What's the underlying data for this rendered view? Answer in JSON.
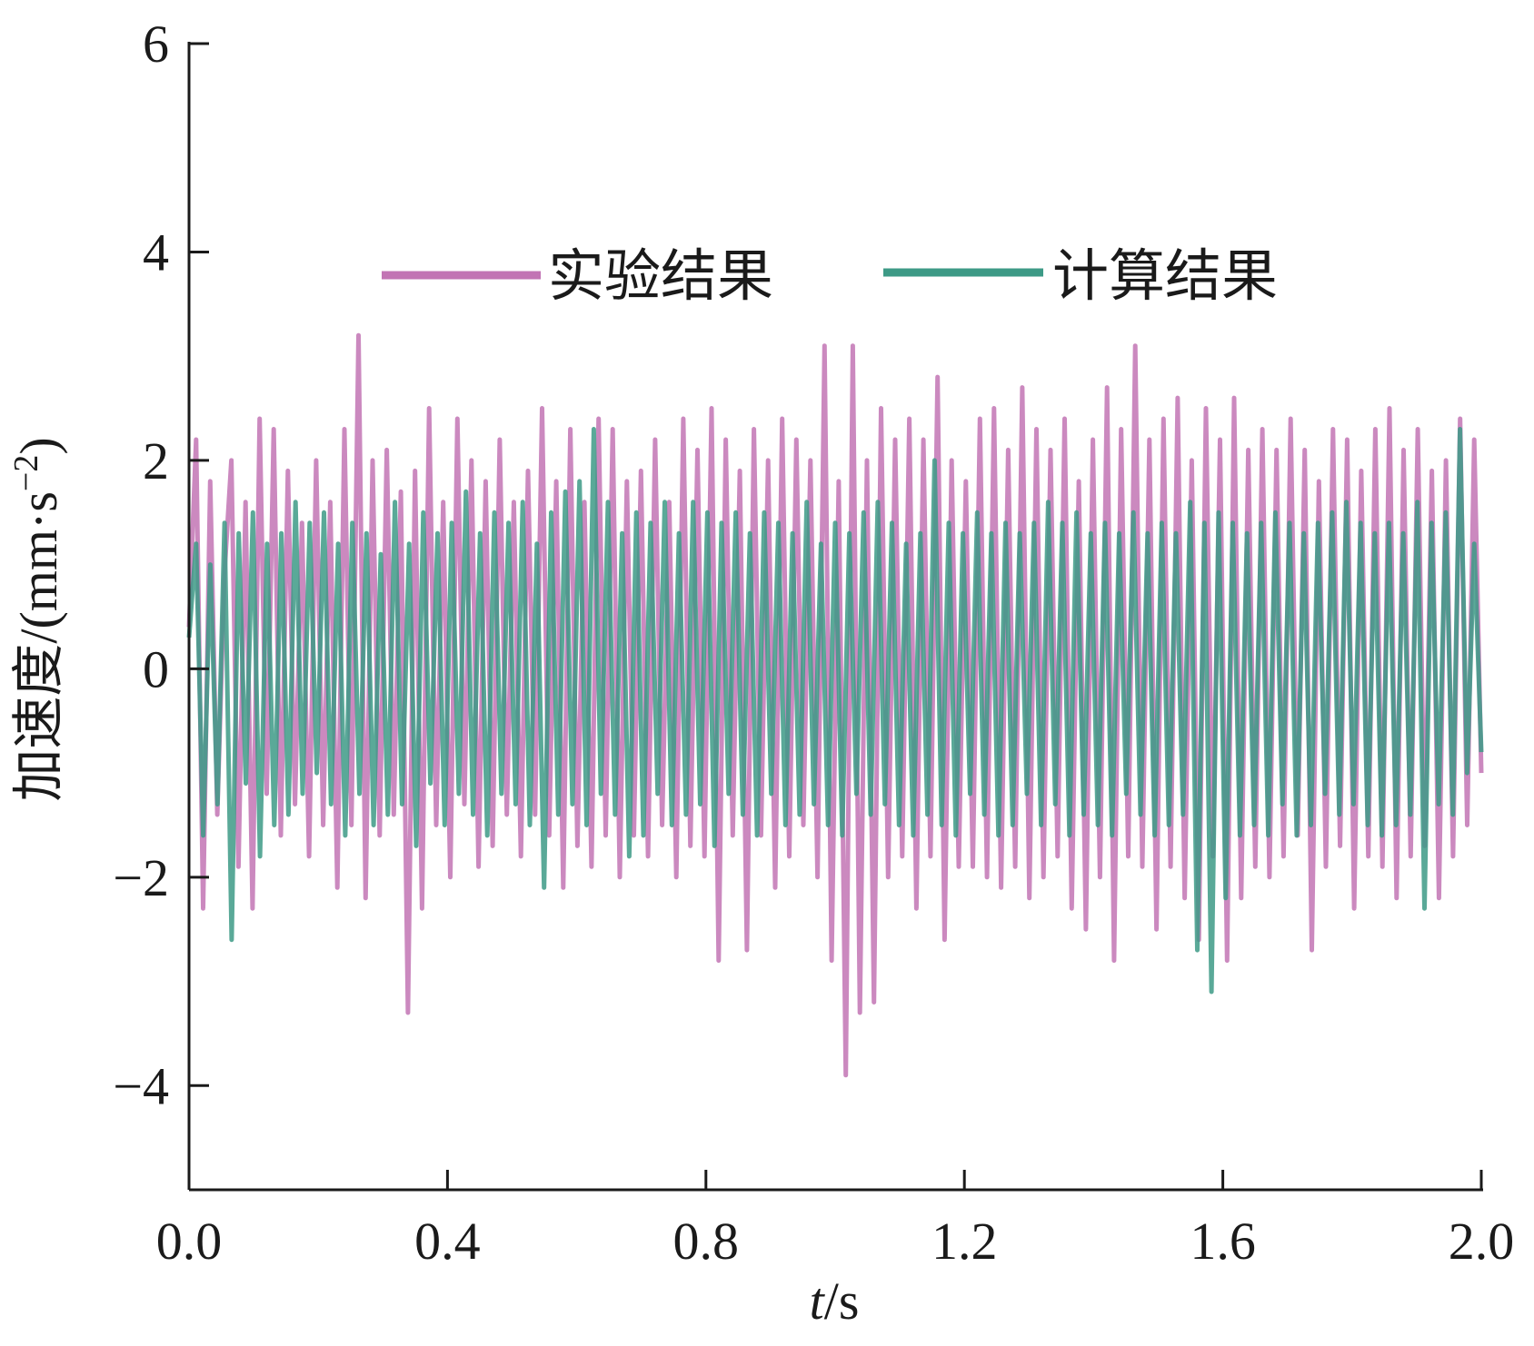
{
  "chart_data": {
    "type": "line",
    "xlabel_italic": "t",
    "xlabel_unit": "/s",
    "ylabel_main": "加速度/(mm·s",
    "ylabel_sup": "−2",
    "ylabel_close": ")",
    "xlim": [
      0.0,
      2.0
    ],
    "ylim": [
      -5,
      6
    ],
    "xticks": [
      0.0,
      0.4,
      0.8,
      1.2,
      1.6,
      2.0
    ],
    "xtick_labels": [
      "0.0",
      "0.4",
      "0.8",
      "1.2",
      "1.6",
      "2.0"
    ],
    "yticks": [
      -4,
      -2,
      0,
      2,
      4,
      6
    ],
    "ytick_labels": [
      "−4",
      "−2",
      "0",
      "2",
      "4",
      "6"
    ],
    "legend_placement": "upper-center",
    "series": [
      {
        "name": "实验结果",
        "color": "#c274b4",
        "opacity": 0.85,
        "x_start": 0.0,
        "x_end": 2.0,
        "values": [
          0.4,
          2.2,
          -2.3,
          1.8,
          -1.4,
          0.9,
          2.0,
          -1.9,
          1.6,
          -2.3,
          2.4,
          -1.2,
          2.3,
          -1.6,
          1.9,
          -1.3,
          1.4,
          -1.8,
          2.0,
          -1.5,
          1.6,
          -2.1,
          2.3,
          -1.5,
          3.2,
          -2.2,
          2.0,
          -1.6,
          2.1,
          -1.4,
          1.7,
          -3.3,
          1.9,
          -2.3,
          2.5,
          -1.5,
          1.6,
          -2.0,
          2.4,
          -1.3,
          2.0,
          -1.9,
          1.8,
          -1.7,
          2.2,
          -1.4,
          1.6,
          -1.8,
          1.9,
          -1.4,
          2.5,
          -1.6,
          1.8,
          -2.1,
          2.3,
          -1.7,
          1.6,
          -1.9,
          2.4,
          -1.6,
          2.3,
          -2.0,
          1.8,
          -1.6,
          1.9,
          -1.8,
          2.2,
          -1.5,
          1.6,
          -2.0,
          2.4,
          -1.7,
          2.1,
          -1.8,
          2.5,
          -2.8,
          2.2,
          -1.6,
          1.9,
          -2.7,
          2.3,
          -1.6,
          2.0,
          -2.1,
          2.4,
          -1.8,
          2.2,
          -1.5,
          2.0,
          -2.0,
          3.1,
          -2.8,
          1.8,
          -3.9,
          3.1,
          -3.3,
          2.0,
          -3.2,
          2.5,
          -2.0,
          2.2,
          -1.8,
          2.4,
          -2.3,
          2.2,
          -1.8,
          2.8,
          -2.6,
          2.0,
          -1.9,
          1.8,
          -1.9,
          2.4,
          -2.0,
          2.5,
          -2.1,
          2.1,
          -1.9,
          2.7,
          -2.2,
          2.3,
          -2.0,
          2.1,
          -1.8,
          2.4,
          -2.3,
          1.8,
          -2.5,
          2.2,
          -2.0,
          2.7,
          -2.8,
          2.3,
          -1.8,
          3.1,
          -1.9,
          2.2,
          -2.5,
          2.4,
          -1.9,
          2.6,
          -2.2,
          2.0,
          -2.6,
          2.5,
          -1.8,
          2.2,
          -2.8,
          2.6,
          -2.2,
          2.1,
          -1.9,
          2.3,
          -2.0,
          2.1,
          -1.8,
          2.4,
          -1.6,
          2.1,
          -2.7,
          1.8,
          -1.9,
          2.3,
          -1.7,
          2.2,
          -2.3,
          1.9,
          -1.8,
          2.3,
          -1.9,
          2.5,
          -2.2,
          2.1,
          -1.8,
          2.3,
          -1.7,
          1.9,
          -2.2,
          2.0,
          -1.8,
          2.4,
          -1.5,
          2.2,
          -1.0
        ],
        "spread_note": "dense oscillation"
      },
      {
        "name": "计算结果",
        "color": "#3d9a86",
        "opacity": 0.85,
        "x_start": 0.0,
        "x_end": 2.0,
        "values": [
          0.3,
          1.2,
          -1.6,
          1.0,
          -1.3,
          1.4,
          -2.6,
          1.3,
          -1.1,
          1.5,
          -1.8,
          1.2,
          -1.5,
          1.3,
          -1.4,
          1.6,
          -1.2,
          1.4,
          -1.0,
          1.5,
          -1.3,
          1.2,
          -1.6,
          1.4,
          -1.2,
          1.3,
          -1.5,
          1.1,
          -1.4,
          1.6,
          -1.3,
          1.2,
          -1.7,
          1.5,
          -1.1,
          1.3,
          -1.5,
          1.4,
          -1.2,
          1.7,
          -1.4,
          1.3,
          -1.6,
          1.5,
          -1.2,
          1.4,
          -1.3,
          1.6,
          -1.5,
          1.2,
          -2.1,
          1.5,
          -1.4,
          1.7,
          -1.3,
          1.8,
          -1.5,
          2.3,
          -1.2,
          1.6,
          -1.4,
          1.3,
          -1.8,
          1.5,
          -1.6,
          1.4,
          -1.2,
          1.6,
          -1.5,
          1.3,
          -1.4,
          1.6,
          -1.3,
          1.5,
          -1.7,
          1.4,
          -1.2,
          1.5,
          -1.4,
          1.3,
          -1.6,
          1.5,
          -1.2,
          1.4,
          -1.5,
          1.3,
          -1.4,
          1.6,
          -1.3,
          1.2,
          -1.5,
          1.4,
          -1.6,
          1.3,
          -1.2,
          1.5,
          -1.4,
          1.6,
          -1.3,
          1.4,
          -1.5,
          1.2,
          -1.6,
          1.3,
          -1.4,
          2.0,
          -1.5,
          1.4,
          -1.6,
          1.3,
          -1.2,
          1.5,
          -1.4,
          1.3,
          -1.6,
          1.4,
          -1.5,
          1.3,
          -1.2,
          1.4,
          -1.5,
          1.6,
          -1.3,
          1.4,
          -1.6,
          1.5,
          -1.4,
          1.3,
          -1.5,
          1.4,
          -1.6,
          1.3,
          -1.2,
          1.5,
          -1.4,
          1.3,
          -1.6,
          1.4,
          -1.5,
          1.3,
          -1.4,
          1.6,
          -2.7,
          1.4,
          -3.1,
          1.5,
          -2.2,
          1.4,
          -1.6,
          1.3,
          -1.5,
          1.4,
          -1.6,
          1.5,
          -1.3,
          1.4,
          -1.6,
          1.3,
          -1.5,
          1.4,
          -1.2,
          1.5,
          -1.4,
          1.6,
          -1.3,
          1.4,
          -1.5,
          1.3,
          -1.6,
          1.4,
          -1.5,
          1.3,
          -1.4,
          1.6,
          -2.3,
          1.4,
          -1.3,
          1.5,
          -1.4,
          2.3,
          -1.0,
          1.2,
          -0.8
        ]
      }
    ]
  }
}
